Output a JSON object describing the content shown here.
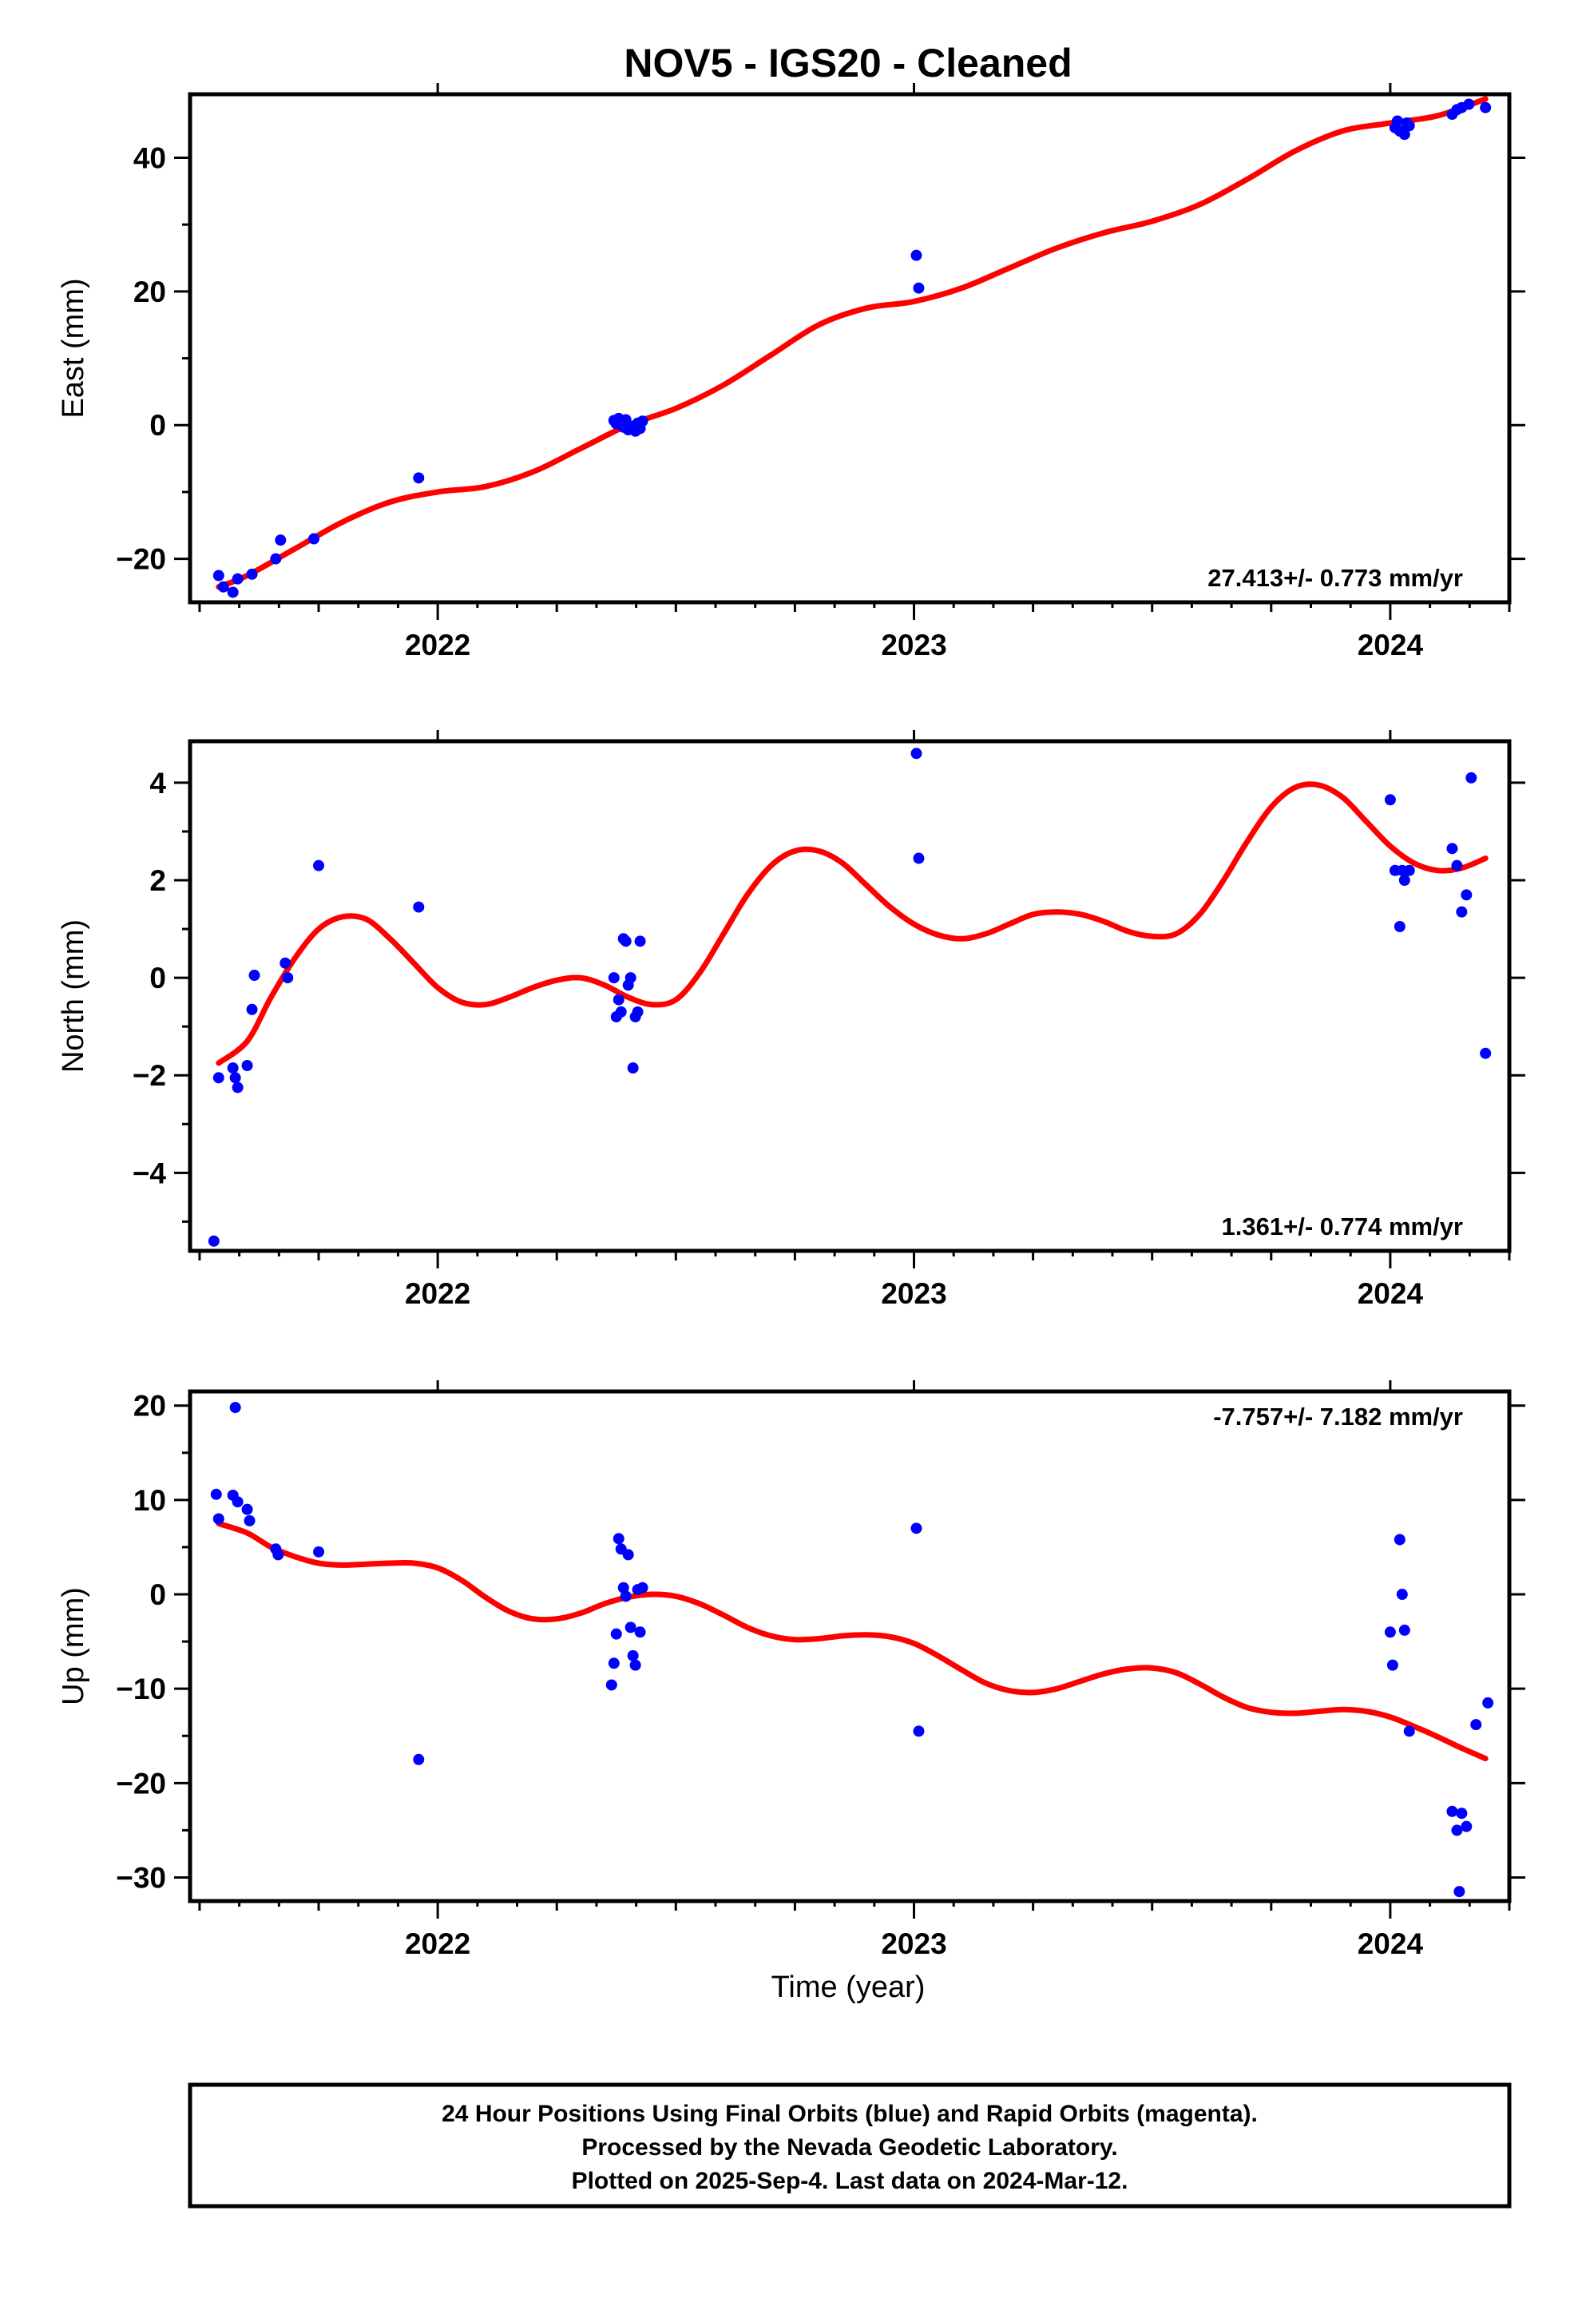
{
  "title": "NOV5  - IGS20 - Cleaned",
  "xlabel": "Time (year)",
  "footer": {
    "lines": [
      "24 Hour Positions Using Final Orbits (blue) and Rapid Orbits (magenta).",
      "Processed by the Nevada Geodetic Laboratory.",
      "Plotted on 2025-Sep-4. Last data on 2024-Mar-12."
    ]
  },
  "colors": {
    "data": "#0000ff",
    "fit": "#ff0000",
    "frame": "#000000"
  },
  "chart_data": [
    {
      "type": "scatter",
      "title": "NOV5  - IGS20 - Cleaned",
      "xlabel": "",
      "ylabel": "East (mm)",
      "xlim": [
        2021.48,
        2024.25
      ],
      "ylim": [
        -26.5,
        49.5
      ],
      "xticks": [
        2022,
        2023,
        2024
      ],
      "xtick_labels": [
        "2022",
        "2023",
        "2024"
      ],
      "yticks": [
        -20,
        0,
        20,
        40
      ],
      "ytick_labels": [
        "−20",
        "0",
        "20",
        "40"
      ],
      "yminor": [
        -10,
        10,
        30
      ],
      "rate": "27.413+/- 0.773 mm/yr",
      "rate_pos": "bottom",
      "points": [
        [
          2021.54,
          -22.5
        ],
        [
          2021.55,
          -24.2
        ],
        [
          2021.57,
          -25.0
        ],
        [
          2021.58,
          -23.0
        ],
        [
          2021.61,
          -22.3
        ],
        [
          2021.66,
          -20.0
        ],
        [
          2021.67,
          -17.2
        ],
        [
          2021.74,
          -17.0
        ],
        [
          2021.96,
          -7.9
        ],
        [
          2022.37,
          0.7
        ],
        [
          2022.375,
          0.2
        ],
        [
          2022.38,
          1.0
        ],
        [
          2022.385,
          0.5
        ],
        [
          2022.39,
          -0.3
        ],
        [
          2022.395,
          0.8
        ],
        [
          2022.4,
          -0.7
        ],
        [
          2022.41,
          -0.2
        ],
        [
          2022.415,
          -0.9
        ],
        [
          2022.42,
          0.3
        ],
        [
          2022.425,
          -0.5
        ],
        [
          2022.43,
          0.6
        ],
        [
          2023.005,
          25.4
        ],
        [
          2023.01,
          20.5
        ],
        [
          2024.01,
          44.5
        ],
        [
          2024.015,
          45.5
        ],
        [
          2024.02,
          44.0
        ],
        [
          2024.03,
          43.5
        ],
        [
          2024.035,
          45.2
        ],
        [
          2024.04,
          44.8
        ],
        [
          2024.13,
          46.5
        ],
        [
          2024.14,
          47.2
        ],
        [
          2024.15,
          47.5
        ],
        [
          2024.165,
          48.0
        ],
        [
          2024.2,
          47.5
        ]
      ],
      "fit": [
        [
          2021.54,
          -24.2
        ],
        [
          2021.6,
          -22.5
        ],
        [
          2021.7,
          -18.5
        ],
        [
          2021.8,
          -14.5
        ],
        [
          2021.9,
          -11.5
        ],
        [
          2022.0,
          -10.0
        ],
        [
          2022.1,
          -9.2
        ],
        [
          2022.2,
          -7.0
        ],
        [
          2022.3,
          -3.5
        ],
        [
          2022.4,
          0.0
        ],
        [
          2022.5,
          2.5
        ],
        [
          2022.6,
          6.0
        ],
        [
          2022.7,
          10.5
        ],
        [
          2022.8,
          15.0
        ],
        [
          2022.9,
          17.5
        ],
        [
          2023.0,
          18.5
        ],
        [
          2023.1,
          20.5
        ],
        [
          2023.2,
          23.5
        ],
        [
          2023.3,
          26.5
        ],
        [
          2023.4,
          28.8
        ],
        [
          2023.5,
          30.5
        ],
        [
          2023.6,
          33.0
        ],
        [
          2023.7,
          36.8
        ],
        [
          2023.8,
          41.0
        ],
        [
          2023.9,
          44.0
        ],
        [
          2024.0,
          45.2
        ],
        [
          2024.1,
          46.3
        ],
        [
          2024.2,
          48.8
        ]
      ]
    },
    {
      "type": "scatter",
      "xlabel": "",
      "ylabel": "North (mm)",
      "xlim": [
        2021.48,
        2024.25
      ],
      "ylim": [
        -5.6,
        4.85
      ],
      "xticks": [
        2022,
        2023,
        2024
      ],
      "xtick_labels": [
        "2022",
        "2023",
        "2024"
      ],
      "yticks": [
        -4,
        -2,
        0,
        2,
        4
      ],
      "ytick_labels": [
        "−4",
        "−2",
        "0",
        "2",
        "4"
      ],
      "yminor": [
        -5,
        -3,
        -1,
        1,
        3
      ],
      "rate": "1.361+/- 0.774 mm/yr",
      "rate_pos": "bottom",
      "points": [
        [
          2021.53,
          -5.4
        ],
        [
          2021.54,
          -2.05
        ],
        [
          2021.57,
          -1.85
        ],
        [
          2021.575,
          -2.05
        ],
        [
          2021.58,
          -2.25
        ],
        [
          2021.6,
          -1.8
        ],
        [
          2021.61,
          -0.65
        ],
        [
          2021.615,
          0.05
        ],
        [
          2021.68,
          0.3
        ],
        [
          2021.685,
          0.0
        ],
        [
          2021.75,
          2.3
        ],
        [
          2021.96,
          1.45
        ],
        [
          2022.37,
          0.0
        ],
        [
          2022.375,
          -0.8
        ],
        [
          2022.38,
          -0.45
        ],
        [
          2022.385,
          -0.7
        ],
        [
          2022.39,
          0.8
        ],
        [
          2022.395,
          0.75
        ],
        [
          2022.4,
          -0.15
        ],
        [
          2022.405,
          0.0
        ],
        [
          2022.41,
          -1.85
        ],
        [
          2022.415,
          -0.8
        ],
        [
          2022.42,
          -0.7
        ],
        [
          2022.425,
          0.75
        ],
        [
          2023.005,
          4.6
        ],
        [
          2023.01,
          2.45
        ],
        [
          2024.0,
          3.65
        ],
        [
          2024.01,
          2.2
        ],
        [
          2024.02,
          1.05
        ],
        [
          2024.025,
          2.2
        ],
        [
          2024.03,
          2.0
        ],
        [
          2024.04,
          2.2
        ],
        [
          2024.13,
          2.65
        ],
        [
          2024.14,
          2.3
        ],
        [
          2024.15,
          1.35
        ],
        [
          2024.16,
          1.7
        ],
        [
          2024.17,
          4.1
        ],
        [
          2024.2,
          -1.55
        ]
      ],
      "fit": [
        [
          2021.54,
          -1.75
        ],
        [
          2021.6,
          -1.3
        ],
        [
          2021.65,
          -0.4
        ],
        [
          2021.7,
          0.4
        ],
        [
          2021.75,
          1.0
        ],
        [
          2021.8,
          1.25
        ],
        [
          2021.85,
          1.2
        ],
        [
          2021.9,
          0.8
        ],
        [
          2021.95,
          0.3
        ],
        [
          2022.0,
          -0.2
        ],
        [
          2022.05,
          -0.5
        ],
        [
          2022.1,
          -0.55
        ],
        [
          2022.15,
          -0.4
        ],
        [
          2022.2,
          -0.2
        ],
        [
          2022.25,
          -0.05
        ],
        [
          2022.3,
          0.0
        ],
        [
          2022.35,
          -0.15
        ],
        [
          2022.4,
          -0.4
        ],
        [
          2022.45,
          -0.55
        ],
        [
          2022.5,
          -0.45
        ],
        [
          2022.55,
          0.1
        ],
        [
          2022.6,
          0.9
        ],
        [
          2022.65,
          1.7
        ],
        [
          2022.7,
          2.3
        ],
        [
          2022.75,
          2.6
        ],
        [
          2022.8,
          2.6
        ],
        [
          2022.85,
          2.35
        ],
        [
          2022.9,
          1.9
        ],
        [
          2022.95,
          1.45
        ],
        [
          2023.0,
          1.1
        ],
        [
          2023.05,
          0.88
        ],
        [
          2023.1,
          0.8
        ],
        [
          2023.15,
          0.9
        ],
        [
          2023.2,
          1.1
        ],
        [
          2023.25,
          1.3
        ],
        [
          2023.3,
          1.35
        ],
        [
          2023.35,
          1.3
        ],
        [
          2023.4,
          1.15
        ],
        [
          2023.45,
          0.95
        ],
        [
          2023.5,
          0.85
        ],
        [
          2023.55,
          0.9
        ],
        [
          2023.6,
          1.3
        ],
        [
          2023.65,
          2.0
        ],
        [
          2023.7,
          2.8
        ],
        [
          2023.75,
          3.5
        ],
        [
          2023.8,
          3.9
        ],
        [
          2023.85,
          3.95
        ],
        [
          2023.9,
          3.7
        ],
        [
          2023.95,
          3.2
        ],
        [
          2024.0,
          2.7
        ],
        [
          2024.05,
          2.35
        ],
        [
          2024.1,
          2.2
        ],
        [
          2024.15,
          2.25
        ],
        [
          2024.2,
          2.45
        ]
      ]
    },
    {
      "type": "scatter",
      "xlabel": "Time (year)",
      "ylabel": "Up (mm)",
      "xlim": [
        2021.48,
        2024.25
      ],
      "ylim": [
        -32.5,
        21.5
      ],
      "xticks": [
        2022,
        2023,
        2024
      ],
      "xtick_labels": [
        "2022",
        "2023",
        "2024"
      ],
      "yticks": [
        -30,
        -20,
        -10,
        0,
        10,
        20
      ],
      "ytick_labels": [
        "−30",
        "−20",
        "−10",
        "0",
        "10",
        "20"
      ],
      "yminor": [
        -25,
        -15,
        -5,
        5,
        15
      ],
      "rate": "-7.757+/- 7.182 mm/yr",
      "rate_pos": "top",
      "points": [
        [
          2021.535,
          10.6
        ],
        [
          2021.54,
          8.0
        ],
        [
          2021.57,
          10.5
        ],
        [
          2021.575,
          19.8
        ],
        [
          2021.58,
          9.8
        ],
        [
          2021.6,
          9.0
        ],
        [
          2021.605,
          7.8
        ],
        [
          2021.66,
          4.8
        ],
        [
          2021.665,
          4.2
        ],
        [
          2021.75,
          4.5
        ],
        [
          2021.96,
          -17.5
        ],
        [
          2022.365,
          -9.6
        ],
        [
          2022.37,
          -7.3
        ],
        [
          2022.375,
          -4.2
        ],
        [
          2022.38,
          5.9
        ],
        [
          2022.385,
          4.8
        ],
        [
          2022.39,
          0.7
        ],
        [
          2022.395,
          -0.2
        ],
        [
          2022.4,
          4.2
        ],
        [
          2022.405,
          -3.5
        ],
        [
          2022.41,
          -6.5
        ],
        [
          2022.415,
          -7.5
        ],
        [
          2022.42,
          0.5
        ],
        [
          2022.425,
          -4.0
        ],
        [
          2022.43,
          0.7
        ],
        [
          2023.005,
          7.0
        ],
        [
          2023.01,
          -14.5
        ],
        [
          2024.0,
          -4.0
        ],
        [
          2024.005,
          -7.5
        ],
        [
          2024.02,
          5.8
        ],
        [
          2024.025,
          0.0
        ],
        [
          2024.03,
          -3.8
        ],
        [
          2024.04,
          -14.5
        ],
        [
          2024.13,
          -23.0
        ],
        [
          2024.14,
          -25.0
        ],
        [
          2024.15,
          -23.2
        ],
        [
          2024.16,
          -24.6
        ],
        [
          2024.145,
          -31.5
        ],
        [
          2024.18,
          -13.8
        ],
        [
          2024.205,
          -11.5
        ]
      ],
      "fit": [
        [
          2021.54,
          7.5
        ],
        [
          2021.6,
          6.5
        ],
        [
          2021.65,
          5.0
        ],
        [
          2021.7,
          4.0
        ],
        [
          2021.75,
          3.3
        ],
        [
          2021.8,
          3.1
        ],
        [
          2021.85,
          3.2
        ],
        [
          2021.9,
          3.3
        ],
        [
          2021.95,
          3.3
        ],
        [
          2022.0,
          2.8
        ],
        [
          2022.05,
          1.5
        ],
        [
          2022.1,
          -0.3
        ],
        [
          2022.15,
          -1.8
        ],
        [
          2022.2,
          -2.6
        ],
        [
          2022.25,
          -2.6
        ],
        [
          2022.3,
          -2.0
        ],
        [
          2022.35,
          -1.0
        ],
        [
          2022.4,
          -0.3
        ],
        [
          2022.45,
          0.0
        ],
        [
          2022.5,
          -0.2
        ],
        [
          2022.55,
          -1.0
        ],
        [
          2022.6,
          -2.2
        ],
        [
          2022.65,
          -3.5
        ],
        [
          2022.7,
          -4.4
        ],
        [
          2022.75,
          -4.8
        ],
        [
          2022.8,
          -4.7
        ],
        [
          2022.85,
          -4.4
        ],
        [
          2022.9,
          -4.3
        ],
        [
          2022.95,
          -4.5
        ],
        [
          2023.0,
          -5.2
        ],
        [
          2023.05,
          -6.5
        ],
        [
          2023.1,
          -8.0
        ],
        [
          2023.15,
          -9.4
        ],
        [
          2023.2,
          -10.2
        ],
        [
          2023.25,
          -10.4
        ],
        [
          2023.3,
          -10.0
        ],
        [
          2023.35,
          -9.2
        ],
        [
          2023.4,
          -8.4
        ],
        [
          2023.45,
          -7.9
        ],
        [
          2023.5,
          -7.8
        ],
        [
          2023.55,
          -8.3
        ],
        [
          2023.6,
          -9.5
        ],
        [
          2023.65,
          -10.9
        ],
        [
          2023.7,
          -12.0
        ],
        [
          2023.75,
          -12.5
        ],
        [
          2023.8,
          -12.6
        ],
        [
          2023.85,
          -12.4
        ],
        [
          2023.9,
          -12.2
        ],
        [
          2023.95,
          -12.4
        ],
        [
          2024.0,
          -13.0
        ],
        [
          2024.05,
          -14.0
        ],
        [
          2024.1,
          -15.1
        ],
        [
          2024.15,
          -16.3
        ],
        [
          2024.2,
          -17.4
        ]
      ]
    }
  ]
}
